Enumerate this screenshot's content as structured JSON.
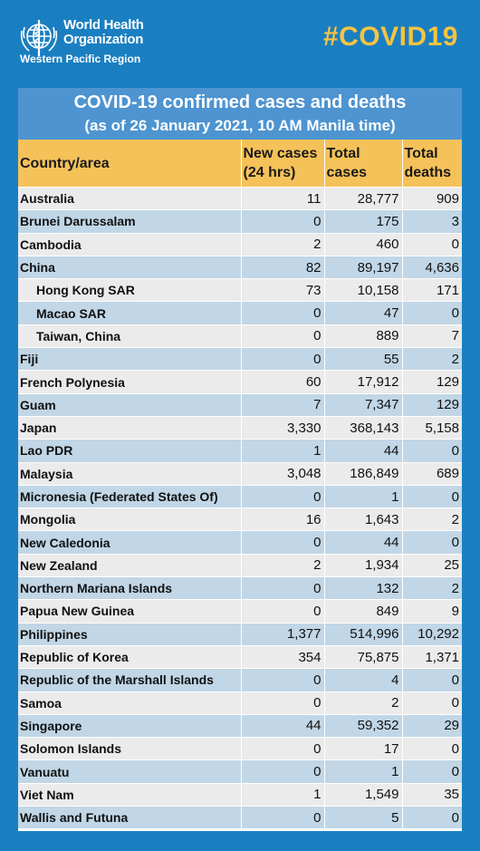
{
  "header": {
    "org_line1": "World Health",
    "org_line2": "Organization",
    "region": "Western Pacific Region",
    "hashtag": "#COVID19"
  },
  "title": {
    "line1": "COVID-19 confirmed cases and deaths",
    "line2": "(as of 26 January 2021, 10 AM Manila time)"
  },
  "columns": {
    "country": "Country/area",
    "new_cases_1": "New cases",
    "new_cases_2": "(24 hrs)",
    "total_cases_1": "Total",
    "total_cases_2": "cases",
    "total_deaths_1": "Total",
    "total_deaths_2": "deaths"
  },
  "rows": [
    {
      "country": "Australia",
      "new": "11",
      "cases": "28,777",
      "deaths": "909",
      "sub": false
    },
    {
      "country": "Brunei Darussalam",
      "new": "0",
      "cases": "175",
      "deaths": "3",
      "sub": false
    },
    {
      "country": "Cambodia",
      "new": "2",
      "cases": "460",
      "deaths": "0",
      "sub": false
    },
    {
      "country": "China",
      "new": "82",
      "cases": "89,197",
      "deaths": "4,636",
      "sub": false
    },
    {
      "country": "Hong Kong SAR",
      "new": "73",
      "cases": "10,158",
      "deaths": "171",
      "sub": true
    },
    {
      "country": "Macao SAR",
      "new": "0",
      "cases": "47",
      "deaths": "0",
      "sub": true
    },
    {
      "country": "Taiwan, China",
      "new": "0",
      "cases": "889",
      "deaths": "7",
      "sub": true
    },
    {
      "country": "Fiji",
      "new": "0",
      "cases": "55",
      "deaths": "2",
      "sub": false
    },
    {
      "country": "French Polynesia",
      "new": "60",
      "cases": "17,912",
      "deaths": "129",
      "sub": false
    },
    {
      "country": "Guam",
      "new": "7",
      "cases": "7,347",
      "deaths": "129",
      "sub": false
    },
    {
      "country": "Japan",
      "new": "3,330",
      "cases": "368,143",
      "deaths": "5,158",
      "sub": false
    },
    {
      "country": "Lao PDR",
      "new": "1",
      "cases": "44",
      "deaths": "0",
      "sub": false
    },
    {
      "country": "Malaysia",
      "new": "3,048",
      "cases": "186,849",
      "deaths": "689",
      "sub": false
    },
    {
      "country": "Micronesia (Federated States Of)",
      "new": "0",
      "cases": "1",
      "deaths": "0",
      "sub": false
    },
    {
      "country": "Mongolia",
      "new": "16",
      "cases": "1,643",
      "deaths": "2",
      "sub": false
    },
    {
      "country": "New Caledonia",
      "new": "0",
      "cases": "44",
      "deaths": "0",
      "sub": false
    },
    {
      "country": "New Zealand",
      "new": "2",
      "cases": "1,934",
      "deaths": "25",
      "sub": false
    },
    {
      "country": "Northern Mariana Islands",
      "new": "0",
      "cases": "132",
      "deaths": "2",
      "sub": false
    },
    {
      "country": "Papua New Guinea",
      "new": "0",
      "cases": "849",
      "deaths": "9",
      "sub": false
    },
    {
      "country": "Philippines",
      "new": "1,377",
      "cases": "514,996",
      "deaths": "10,292",
      "sub": false
    },
    {
      "country": "Republic of Korea",
      "new": "354",
      "cases": "75,875",
      "deaths": "1,371",
      "sub": false
    },
    {
      "country": "Republic of the Marshall Islands",
      "new": "0",
      "cases": "4",
      "deaths": "0",
      "sub": false
    },
    {
      "country": "Samoa",
      "new": "0",
      "cases": "2",
      "deaths": "0",
      "sub": false
    },
    {
      "country": "Singapore",
      "new": "44",
      "cases": "59,352",
      "deaths": "29",
      "sub": false
    },
    {
      "country": "Solomon Islands",
      "new": "0",
      "cases": "17",
      "deaths": "0",
      "sub": false
    },
    {
      "country": "Vanuatu",
      "new": "0",
      "cases": "1",
      "deaths": "0",
      "sub": false
    },
    {
      "country": "Viet Nam",
      "new": "1",
      "cases": "1,549",
      "deaths": "35",
      "sub": false
    },
    {
      "country": "Wallis and Futuna",
      "new": "0",
      "cases": "5",
      "deaths": "0",
      "sub": false
    }
  ],
  "colors": {
    "background": "#1a7fc1",
    "title_bar": "#4d94d0",
    "header_row": "#f5c25a",
    "row_light": "#ebebeb",
    "row_blue": "#c1d6e6",
    "hashtag": "#f6c343"
  },
  "icons": {
    "logo": "who-emblem-icon"
  }
}
